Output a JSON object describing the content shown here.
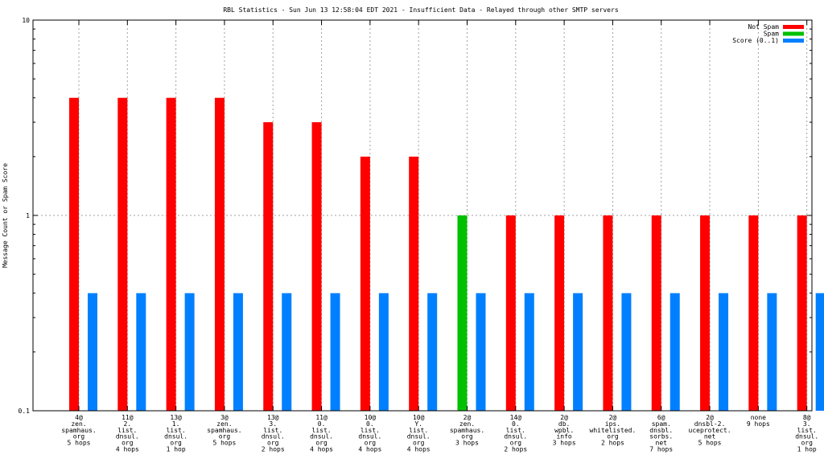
{
  "chart_data": {
    "type": "bar",
    "title": "RBL Statistics - Sun Jun 13 12:58:04 EDT 2021 - Insufficient Data - Relayed through other SMTP servers",
    "ylabel": "Message Count or Spam Score",
    "xlabel": "",
    "scale": "log",
    "ylim": [
      0.1,
      10
    ],
    "yticks": [
      "0.1",
      "1",
      "10"
    ],
    "grid": true,
    "legend_position": "top-right",
    "categories": [
      [
        "4@",
        "zen.",
        "spamhaus.",
        "org",
        "5 hops"
      ],
      [
        "11@",
        "2.",
        "list.",
        "dnsul.",
        "org",
        "4 hops"
      ],
      [
        "13@",
        "1.",
        "list.",
        "dnsul.",
        "org",
        "1 hop"
      ],
      [
        "3@",
        "zen.",
        "spamhaus.",
        "org",
        "5 hops"
      ],
      [
        "13@",
        "3.",
        "list.",
        "dnsul.",
        "org",
        "2 hops"
      ],
      [
        "11@",
        "0.",
        "list.",
        "dnsul.",
        "org",
        "4 hops"
      ],
      [
        "10@",
        "0.",
        "list.",
        "dnsul.",
        "org",
        "4 hops"
      ],
      [
        "10@",
        "Y.",
        "list.",
        "dnsul.",
        "org",
        "4 hops"
      ],
      [
        "2@",
        "zen.",
        "spamhaus.",
        "org",
        "3 hops"
      ],
      [
        "14@",
        "0.",
        "list.",
        "dnsul.",
        "org",
        "2 hops"
      ],
      [
        "2@",
        "db.",
        "wpbl.",
        "info",
        "3 hops"
      ],
      [
        "2@",
        "ips.",
        "whitelisted.",
        "org",
        "2 hops"
      ],
      [
        "6@",
        "spam.",
        "dnsbl.",
        "sorbs.",
        "net",
        "7 hops"
      ],
      [
        "2@",
        "dnsbl-2.",
        "uceprotect.",
        "net",
        "5 hops"
      ],
      [
        "none",
        "9 hops"
      ],
      [
        "8@",
        "3.",
        "list.",
        "dnsul.",
        "org",
        "1 hop"
      ]
    ],
    "series": [
      {
        "name": "Not Spam",
        "color": "#ff0000",
        "values": [
          4,
          4,
          4,
          4,
          3,
          3,
          2,
          2,
          0,
          1,
          1,
          1,
          1,
          1,
          1,
          1
        ]
      },
      {
        "name": "Spam",
        "color": "#00c000",
        "values": [
          0,
          0,
          0,
          0,
          0,
          0,
          0,
          0,
          1,
          0,
          0,
          0,
          0,
          0,
          0,
          0
        ]
      },
      {
        "name": "Score (0..1)",
        "color": "#0080ff",
        "values": [
          0.4,
          0.4,
          0.4,
          0.4,
          0.4,
          0.4,
          0.4,
          0.4,
          0.4,
          0.4,
          0.4,
          0.4,
          0.4,
          0.4,
          0.4,
          0.4
        ]
      }
    ]
  }
}
